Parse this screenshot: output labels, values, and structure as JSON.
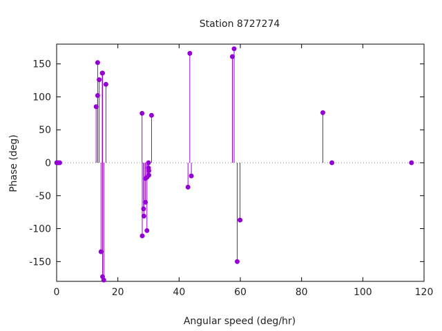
{
  "chart_data": {
    "type": "scatter",
    "style": "impulses-with-points",
    "title": "Station 8727274",
    "xlabel": "Angular speed (deg/hr)",
    "ylabel": "Phase (deg)",
    "xlim": [
      0,
      120
    ],
    "ylim": [
      -180,
      180
    ],
    "xticks": [
      0,
      20,
      40,
      60,
      80,
      100,
      120
    ],
    "yticks": [
      -150,
      -100,
      -50,
      0,
      50,
      100,
      150
    ],
    "grid": false,
    "zero_line": "dotted",
    "color": "#9400d3",
    "series": [
      {
        "points": [
          {
            "x": 0.04,
            "y": 0
          },
          {
            "x": 0.08,
            "y": 0
          },
          {
            "x": 0.5,
            "y": 0
          },
          {
            "x": 1.0,
            "y": 0
          },
          {
            "x": 12.9,
            "y": 85
          },
          {
            "x": 13.4,
            "y": 102
          },
          {
            "x": 13.4,
            "y": 152
          },
          {
            "x": 13.9,
            "y": 126
          },
          {
            "x": 14.5,
            "y": -135
          },
          {
            "x": 14.9,
            "y": 136
          },
          {
            "x": 15.0,
            "y": 136
          },
          {
            "x": 15.0,
            "y": -173
          },
          {
            "x": 15.4,
            "y": -178
          },
          {
            "x": 16.1,
            "y": 119
          },
          {
            "x": 27.9,
            "y": 75
          },
          {
            "x": 27.97,
            "y": -111
          },
          {
            "x": 28.4,
            "y": -70
          },
          {
            "x": 28.5,
            "y": -81
          },
          {
            "x": 29.0,
            "y": -60
          },
          {
            "x": 29.0,
            "y": -24
          },
          {
            "x": 29.5,
            "y": -103
          },
          {
            "x": 29.5,
            "y": -22
          },
          {
            "x": 30.0,
            "y": 0
          },
          {
            "x": 30.0,
            "y": -8
          },
          {
            "x": 30.1,
            "y": -12
          },
          {
            "x": 30.1,
            "y": -19
          },
          {
            "x": 31.0,
            "y": 72
          },
          {
            "x": 42.9,
            "y": -37
          },
          {
            "x": 43.5,
            "y": 166
          },
          {
            "x": 44.0,
            "y": -20
          },
          {
            "x": 57.4,
            "y": 161
          },
          {
            "x": 57.97,
            "y": 173
          },
          {
            "x": 58.98,
            "y": -150
          },
          {
            "x": 59.9,
            "y": -87
          },
          {
            "x": 86.95,
            "y": 76
          },
          {
            "x": 89.9,
            "y": 0
          },
          {
            "x": 115.9,
            "y": 0
          }
        ]
      }
    ]
  }
}
